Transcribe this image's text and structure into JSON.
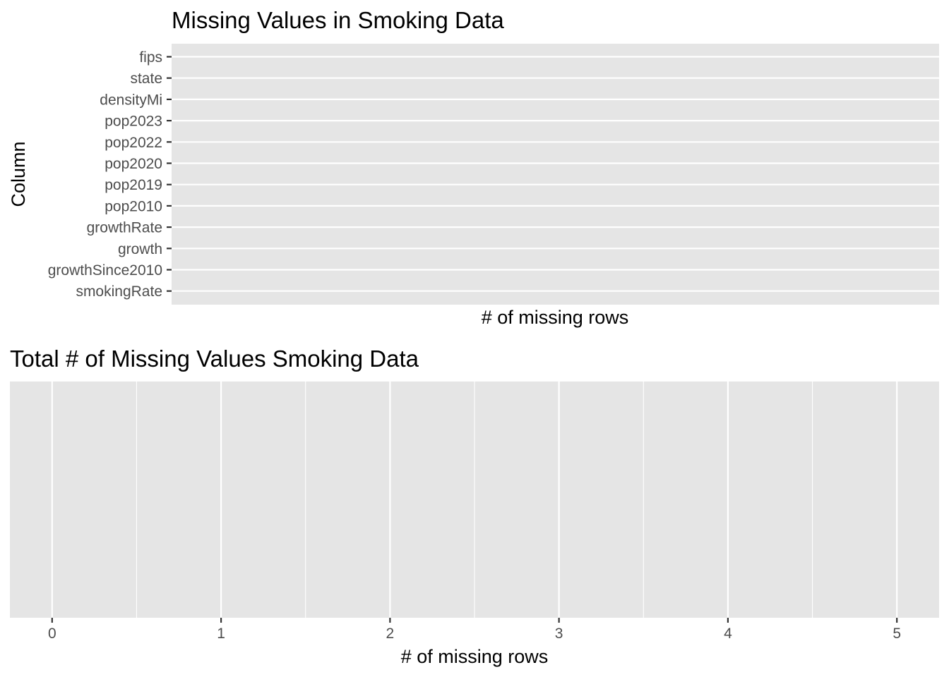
{
  "chart_data": [
    {
      "type": "bar",
      "orientation": "horizontal",
      "title": "Missing Values in Smoking Data",
      "xlabel": "# of missing rows",
      "ylabel": "Column",
      "categories": [
        "fips",
        "state",
        "densityMi",
        "pop2023",
        "pop2022",
        "pop2020",
        "pop2019",
        "pop2010",
        "growthRate",
        "growth",
        "growthSince2010",
        "smokingRate"
      ],
      "values": [
        0,
        0,
        0,
        0,
        0,
        0,
        0,
        0,
        0,
        0,
        0,
        0
      ],
      "x_tick_labels": [],
      "grid": true,
      "background": "#e5e5e5",
      "grid_color": "#ffffff"
    },
    {
      "type": "bar",
      "orientation": "horizontal",
      "title": "Total # of Missing Values Smoking Data",
      "xlabel": "# of missing rows",
      "ylabel": "",
      "categories": [],
      "values": [],
      "x_ticks": [
        0,
        1,
        2,
        3,
        4,
        5
      ],
      "x_tick_labels": [
        "0",
        "1",
        "2",
        "3",
        "4",
        "5"
      ],
      "xlim": [
        -0.25,
        5.25
      ],
      "grid": true,
      "background": "#e5e5e5",
      "grid_color": "#ffffff"
    }
  ]
}
